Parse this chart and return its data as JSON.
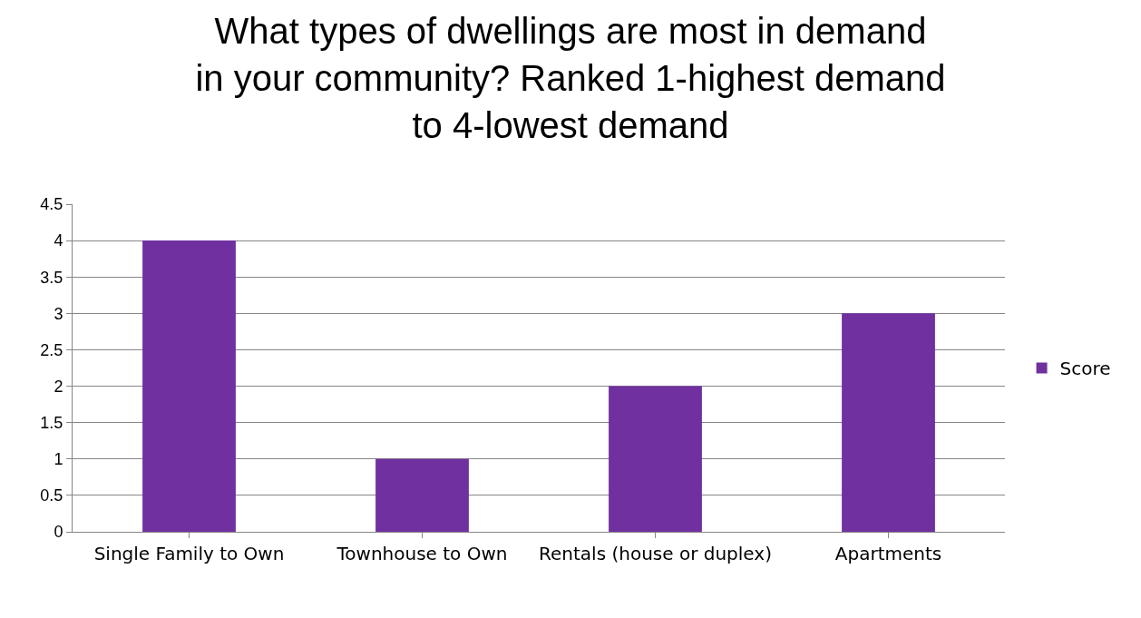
{
  "chart_data": {
    "type": "bar",
    "title": "What types of dwellings are most in demand in your community? Ranked 1-highest demand to 4-lowest demand",
    "categories": [
      "Single Family to Own",
      "Townhouse to Own",
      "Rentals (house or duplex)",
      "Apartments"
    ],
    "series": [
      {
        "name": "Score",
        "color": "#7030a0",
        "values": [
          4,
          1,
          2,
          3
        ]
      }
    ],
    "ylim": [
      0,
      4.5
    ],
    "yticks": [
      0,
      0.5,
      1,
      1.5,
      2,
      2.5,
      3,
      3.5,
      4,
      4.5
    ],
    "grid": "y",
    "legend": "right"
  }
}
